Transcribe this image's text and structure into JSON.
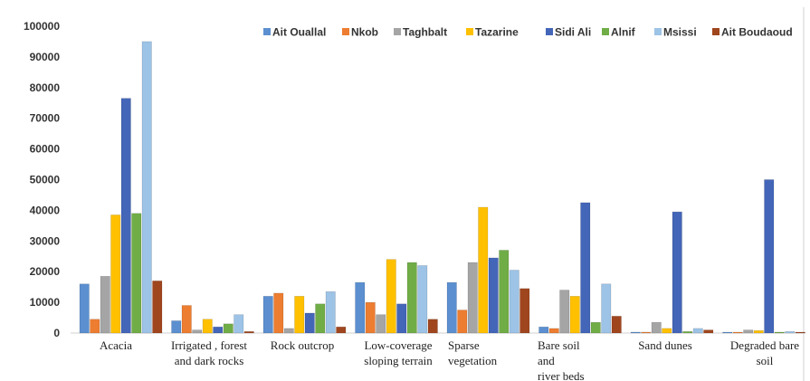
{
  "chart_data": {
    "type": "bar",
    "categories": [
      [
        "Acacia"
      ],
      [
        "Irrigated , forest",
        "and dark rocks"
      ],
      [
        "Rock outcrop"
      ],
      [
        "Low-coverage",
        "sloping terrain"
      ],
      [
        "Sparse",
        "vegetation"
      ],
      [
        "Bare soil",
        "and",
        "river beds"
      ],
      [
        "Sand dunes"
      ],
      [
        "Degraded bare",
        "soil"
      ]
    ],
    "series": [
      {
        "name": "Ait Ouallal",
        "color": "#5B8FD0",
        "values": [
          16000,
          4000,
          12000,
          16500,
          16500,
          2000,
          300,
          200
        ]
      },
      {
        "name": "Nkob",
        "color": "#ED7D31",
        "values": [
          4500,
          9000,
          13000,
          10000,
          7500,
          1500,
          300,
          200
        ]
      },
      {
        "name": "Taghbalt",
        "color": "#A5A5A5",
        "values": [
          18500,
          1000,
          1500,
          6000,
          23000,
          14000,
          3500,
          1000
        ]
      },
      {
        "name": "Tazarine",
        "color": "#FFC000",
        "values": [
          38500,
          4500,
          12000,
          24000,
          41000,
          12000,
          1500,
          800
        ]
      },
      {
        "name": "Sidi Ali",
        "color": "#4466B8",
        "values": [
          76500,
          2000,
          6500,
          9500,
          24500,
          42500,
          39500,
          50000
        ]
      },
      {
        "name": "Alnif",
        "color": "#70AD47",
        "values": [
          39000,
          3000,
          9500,
          23000,
          27000,
          3500,
          500,
          300
        ]
      },
      {
        "name": "Msissi",
        "color": "#9DC3E6",
        "values": [
          95000,
          6000,
          13500,
          22000,
          20500,
          16000,
          1500,
          500
        ]
      },
      {
        "name": "Ait Boudaoud",
        "color": "#A0461E",
        "values": [
          17000,
          500,
          2000,
          4500,
          14500,
          5500,
          1000,
          200
        ]
      }
    ],
    "yticks": [
      0,
      10000,
      20000,
      30000,
      40000,
      50000,
      60000,
      70000,
      80000,
      90000,
      100000
    ],
    "ylim": [
      0,
      100000
    ],
    "grid": false,
    "legend": "top"
  }
}
